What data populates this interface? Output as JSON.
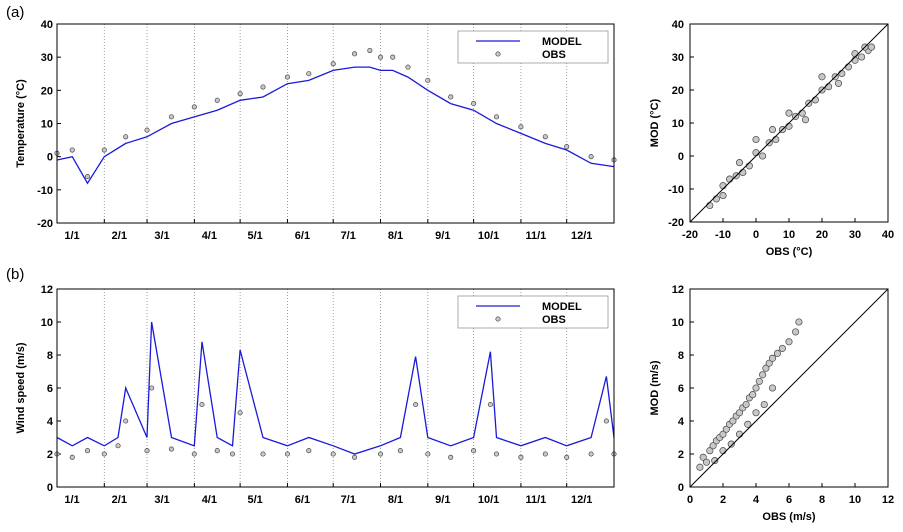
{
  "colors": {
    "model": "#1a1adb",
    "obs_fill": "#c8c8c8",
    "obs_stroke": "#444444",
    "axis": "#000000",
    "grid": "#888888"
  },
  "panels": {
    "a": "(a)",
    "b": "(b)"
  },
  "chart_data": [
    {
      "id": "temp-timeseries",
      "type": "line",
      "ylabel": "Temperature (°C)",
      "ylim": [
        -20,
        40
      ],
      "yticks": [
        "-20",
        "-10",
        "0",
        "10",
        "20",
        "30",
        "40"
      ],
      "xlim": [
        0,
        365
      ],
      "xticks": [
        {
          "label": "1/1",
          "day": 0
        },
        {
          "label": "2/1",
          "day": 31
        },
        {
          "label": "3/1",
          "day": 59
        },
        {
          "label": "4/1",
          "day": 90
        },
        {
          "label": "5/1",
          "day": 120
        },
        {
          "label": "6/1",
          "day": 151
        },
        {
          "label": "7/1",
          "day": 181
        },
        {
          "label": "8/1",
          "day": 212
        },
        {
          "label": "9/1",
          "day": 243
        },
        {
          "label": "10/1",
          "day": 273
        },
        {
          "label": "11/1",
          "day": 304
        },
        {
          "label": "12/1",
          "day": 334
        }
      ],
      "grid": "vertical dotted at month starts",
      "legend": {
        "placement": "top-right",
        "entries": [
          "MODEL",
          "OBS"
        ]
      },
      "series": [
        {
          "name": "MODEL",
          "x": [
            0,
            10,
            20,
            31,
            45,
            59,
            75,
            90,
            105,
            120,
            135,
            151,
            165,
            181,
            195,
            205,
            212,
            220,
            230,
            243,
            258,
            273,
            288,
            304,
            320,
            334,
            350,
            365
          ],
          "values": [
            -1,
            0,
            -8,
            0,
            4,
            6,
            10,
            12,
            14,
            17,
            18,
            22,
            23,
            26,
            27,
            27,
            26,
            26,
            24,
            20,
            16,
            14,
            10,
            7,
            4,
            2,
            -2,
            -3
          ]
        },
        {
          "name": "OBS",
          "x": [
            0,
            10,
            20,
            31,
            45,
            59,
            75,
            90,
            105,
            120,
            135,
            151,
            165,
            181,
            195,
            205,
            212,
            220,
            230,
            243,
            258,
            273,
            288,
            304,
            320,
            334,
            350,
            365
          ],
          "values": [
            1,
            2,
            -6,
            2,
            6,
            8,
            12,
            15,
            17,
            19,
            21,
            24,
            25,
            28,
            31,
            32,
            30,
            30,
            27,
            23,
            18,
            16,
            12,
            9,
            6,
            3,
            0,
            -1
          ]
        }
      ]
    },
    {
      "id": "temp-scatter",
      "type": "scatter",
      "xlabel": "OBS (°C)",
      "ylabel": "MOD (°C)",
      "xlim": [
        -20,
        40
      ],
      "ylim": [
        -20,
        40
      ],
      "xticks": [
        "-20",
        "-10",
        "0",
        "10",
        "20",
        "30",
        "40"
      ],
      "yticks": [
        "-20",
        "-10",
        "0",
        "10",
        "20",
        "30",
        "40"
      ],
      "reference_line": "1:1",
      "series": [
        {
          "name": "",
          "points": [
            [
              -14,
              -15
            ],
            [
              -12,
              -13
            ],
            [
              -10,
              -9
            ],
            [
              -8,
              -7
            ],
            [
              -6,
              -6
            ],
            [
              -4,
              -5
            ],
            [
              -2,
              -3
            ],
            [
              0,
              1
            ],
            [
              2,
              0
            ],
            [
              4,
              4
            ],
            [
              6,
              5
            ],
            [
              8,
              8
            ],
            [
              10,
              9
            ],
            [
              12,
              12
            ],
            [
              14,
              13
            ],
            [
              16,
              16
            ],
            [
              18,
              17
            ],
            [
              20,
              20
            ],
            [
              22,
              21
            ],
            [
              24,
              24
            ],
            [
              26,
              25
            ],
            [
              28,
              27
            ],
            [
              30,
              29
            ],
            [
              32,
              30
            ],
            [
              34,
              32
            ],
            [
              35,
              33
            ],
            [
              5,
              8
            ],
            [
              10,
              13
            ],
            [
              0,
              5
            ],
            [
              20,
              24
            ],
            [
              -5,
              -2
            ],
            [
              15,
              11
            ],
            [
              25,
              22
            ],
            [
              30,
              31
            ],
            [
              33,
              33
            ],
            [
              -10,
              -12
            ]
          ]
        }
      ]
    },
    {
      "id": "wind-timeseries",
      "type": "line",
      "ylabel": "Wind speed (m/s)",
      "ylim": [
        0,
        12
      ],
      "yticks": [
        "0",
        "2",
        "4",
        "6",
        "8",
        "10",
        "12"
      ],
      "xlim": [
        0,
        365
      ],
      "xticks": [
        {
          "label": "1/1",
          "day": 0
        },
        {
          "label": "2/1",
          "day": 31
        },
        {
          "label": "3/1",
          "day": 59
        },
        {
          "label": "4/1",
          "day": 90
        },
        {
          "label": "5/1",
          "day": 120
        },
        {
          "label": "6/1",
          "day": 151
        },
        {
          "label": "7/1",
          "day": 181
        },
        {
          "label": "8/1",
          "day": 212
        },
        {
          "label": "9/1",
          "day": 243
        },
        {
          "label": "10/1",
          "day": 273
        },
        {
          "label": "11/1",
          "day": 304
        },
        {
          "label": "12/1",
          "day": 334
        }
      ],
      "grid": "vertical dotted at month starts",
      "legend": {
        "placement": "top-right",
        "entries": [
          "MODEL",
          "OBS"
        ]
      },
      "series": [
        {
          "name": "MODEL",
          "x": [
            0,
            10,
            20,
            31,
            40,
            45,
            59,
            62,
            75,
            90,
            95,
            105,
            115,
            120,
            135,
            151,
            165,
            181,
            195,
            212,
            225,
            235,
            243,
            258,
            273,
            284,
            288,
            304,
            320,
            334,
            350,
            360,
            365
          ],
          "values": [
            3,
            2.5,
            3,
            2.5,
            3,
            6,
            3,
            10,
            3,
            2.5,
            8.8,
            3,
            2.5,
            8.3,
            3,
            2.5,
            3,
            2.5,
            2,
            2.5,
            3,
            7.9,
            3,
            2.5,
            3,
            8.2,
            3,
            2.5,
            3,
            2.5,
            3,
            6.7,
            3
          ]
        },
        {
          "name": "OBS",
          "x": [
            0,
            10,
            20,
            31,
            40,
            45,
            59,
            62,
            75,
            90,
            95,
            105,
            115,
            120,
            135,
            151,
            165,
            181,
            195,
            212,
            225,
            235,
            243,
            258,
            273,
            284,
            288,
            304,
            320,
            334,
            350,
            360,
            365
          ],
          "values": [
            2,
            1.8,
            2.2,
            2,
            2.5,
            4,
            2.2,
            6,
            2.3,
            2,
            5,
            2.2,
            2,
            4.5,
            2,
            2,
            2.2,
            2,
            1.8,
            2,
            2.2,
            5,
            2,
            1.8,
            2.2,
            5,
            2,
            1.8,
            2,
            1.8,
            2,
            4,
            2
          ]
        }
      ]
    },
    {
      "id": "wind-scatter",
      "type": "scatter",
      "xlabel": "OBS (m/s)",
      "ylabel": "MOD (m/s)",
      "xlim": [
        0,
        12
      ],
      "ylim": [
        0,
        12
      ],
      "xticks": [
        "0",
        "2",
        "4",
        "6",
        "8",
        "10",
        "12"
      ],
      "yticks": [
        "0",
        "2",
        "4",
        "6",
        "8",
        "10",
        "12"
      ],
      "reference_line": "1:1",
      "series": [
        {
          "name": "",
          "points": [
            [
              0.6,
              1.2
            ],
            [
              0.8,
              1.8
            ],
            [
              1,
              1.5
            ],
            [
              1.2,
              2.2
            ],
            [
              1.4,
              2.5
            ],
            [
              1.6,
              2.8
            ],
            [
              1.8,
              3
            ],
            [
              2,
              3.2
            ],
            [
              2.2,
              3.5
            ],
            [
              2.4,
              3.8
            ],
            [
              2.6,
              4
            ],
            [
              2.8,
              4.3
            ],
            [
              3,
              4.5
            ],
            [
              3.2,
              4.8
            ],
            [
              3.4,
              5
            ],
            [
              3.6,
              5.4
            ],
            [
              3.8,
              5.6
            ],
            [
              4,
              6
            ],
            [
              4.2,
              6.4
            ],
            [
              4.4,
              6.8
            ],
            [
              4.6,
              7.2
            ],
            [
              4.8,
              7.5
            ],
            [
              5,
              7.8
            ],
            [
              5.3,
              8.1
            ],
            [
              5.6,
              8.4
            ],
            [
              6,
              8.8
            ],
            [
              6.4,
              9.4
            ],
            [
              6.6,
              10
            ],
            [
              1.5,
              1.6
            ],
            [
              2,
              2.2
            ],
            [
              2.5,
              2.6
            ],
            [
              3,
              3.2
            ],
            [
              3.5,
              3.8
            ],
            [
              4,
              4.5
            ],
            [
              4.5,
              5
            ],
            [
              5,
              6
            ]
          ]
        }
      ]
    }
  ]
}
